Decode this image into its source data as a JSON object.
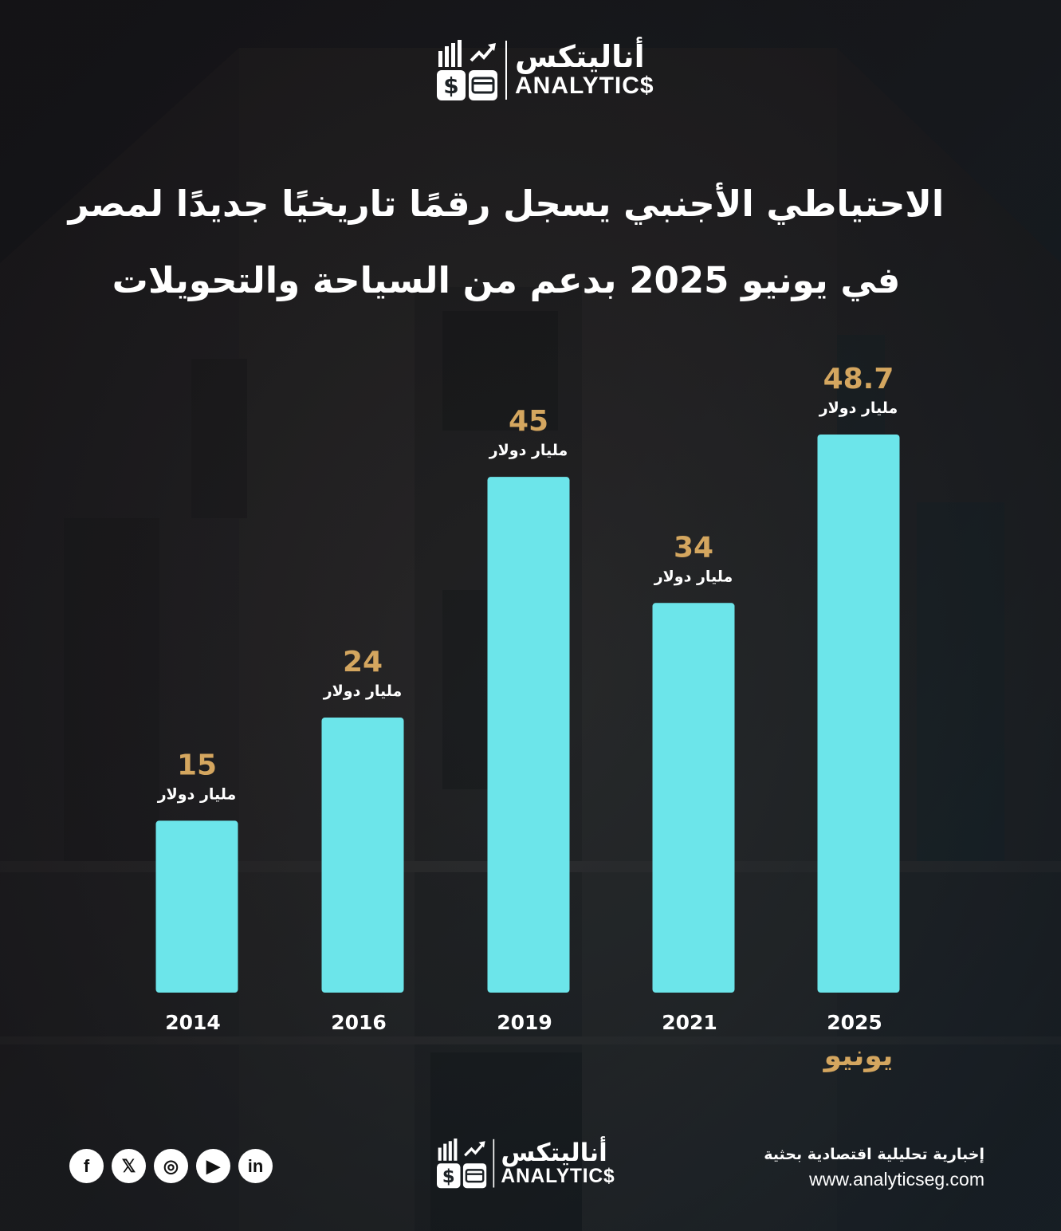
{
  "brand": {
    "name_ar": "أناليتكس",
    "name_en": "ANALYTIC$"
  },
  "title": {
    "line1": "الاحتياطي الأجنبي يسجل رقمًا تاريخيًا جديدًا لمصر",
    "line2": "في يونيو 2025 بدعم من السياحة والتحويلات"
  },
  "chart_data": {
    "type": "bar",
    "categories": [
      "2014",
      "2016",
      "2019",
      "2021",
      "2025"
    ],
    "values": [
      15,
      24,
      45,
      34,
      48.7
    ],
    "value_labels": [
      "15",
      "24",
      "45",
      "34",
      "48.7"
    ],
    "unit_label": "مليار دولار",
    "category_note": {
      "index": 4,
      "text": "يونيو"
    },
    "ylim": [
      0,
      48.7
    ],
    "grid": false,
    "legend": "none",
    "bar_color": "#6ce5ea",
    "value_color": "#d4a65f"
  },
  "footer": {
    "tagline": "إخبارية تحليلية اقتصادية بحثية",
    "website": "www.analyticseg.com",
    "social": [
      {
        "name": "facebook-icon",
        "glyph": "f"
      },
      {
        "name": "x-icon",
        "glyph": "𝕏"
      },
      {
        "name": "instagram-icon",
        "glyph": "◎"
      },
      {
        "name": "youtube-icon",
        "glyph": "▶"
      },
      {
        "name": "linkedin-icon",
        "glyph": "in"
      }
    ]
  }
}
